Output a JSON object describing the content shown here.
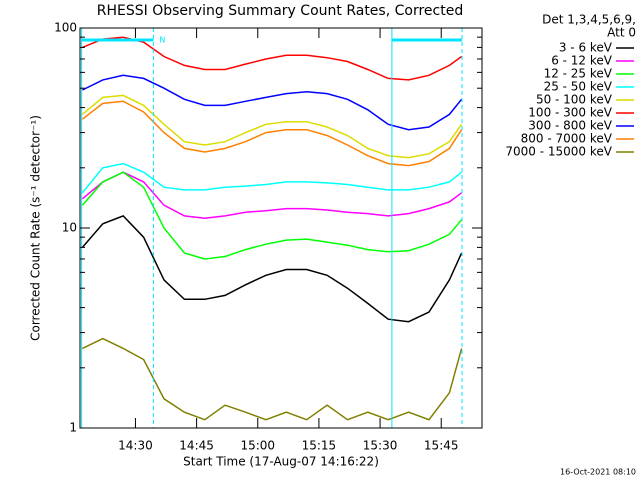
{
  "chart_data": {
    "type": "line",
    "title": "RHESSI Observing Summary Count Rates, Corrected",
    "xlabel": "Start Time (17-Aug-07 14:16:22)",
    "ylabel": "Corrected Count Rate (s⁻¹ detector⁻¹)",
    "legend_header": [
      "Det 1,3,4,5,6,9,",
      "Att 0"
    ],
    "legend_position": "outside-right",
    "footer": "16-Oct-2021 08:10",
    "log_y": true,
    "xlim": [
      16.4,
      115
    ],
    "ylim": [
      1,
      100
    ],
    "xticks": [
      {
        "value": 30,
        "label": "14:30"
      },
      {
        "value": 45,
        "label": "14:45"
      },
      {
        "value": 60,
        "label": "15:00"
      },
      {
        "value": 75,
        "label": "15:15"
      },
      {
        "value": 90,
        "label": "15:30"
      },
      {
        "value": 105,
        "label": "15:45"
      }
    ],
    "yticks": [
      1,
      10,
      100
    ],
    "y_minor_ticks": [
      2,
      3,
      4,
      5,
      6,
      7,
      8,
      9,
      20,
      30,
      40,
      50,
      60,
      70,
      80,
      90
    ],
    "night_periods": [
      [
        16.8,
        34.4
      ],
      [
        92.9,
        110.1
      ]
    ],
    "night_label": "N",
    "night_color": "#00e5ff",
    "x": [
      17,
      22,
      27,
      32,
      37,
      42,
      47,
      52,
      57,
      62,
      67,
      72,
      77,
      82,
      87,
      92,
      97,
      102,
      107,
      110
    ],
    "series": [
      {
        "name": "3 - 6 keV",
        "color": "#000000",
        "values": [
          8,
          10.5,
          11.5,
          9,
          5.5,
          4.4,
          4.4,
          4.6,
          5.2,
          5.8,
          6.2,
          6.2,
          5.8,
          5,
          4.2,
          3.5,
          3.4,
          3.8,
          5.5,
          7.5
        ]
      },
      {
        "name": "6 - 12 keV",
        "color": "#ff00ff",
        "values": [
          14,
          17,
          19,
          17,
          13,
          11.5,
          11.2,
          11.5,
          12,
          12.2,
          12.5,
          12.5,
          12.3,
          12,
          11.8,
          11.5,
          11.8,
          12.5,
          13.5,
          15
        ]
      },
      {
        "name": "12 - 25 keV",
        "color": "#00ff00",
        "values": [
          13,
          17,
          19,
          16,
          10,
          7.5,
          7,
          7.2,
          7.8,
          8.3,
          8.7,
          8.8,
          8.5,
          8.2,
          7.8,
          7.6,
          7.7,
          8.3,
          9.3,
          11
        ]
      },
      {
        "name": "25 - 50 keV",
        "color": "#00ffff",
        "values": [
          15,
          20,
          21,
          19,
          16,
          15.5,
          15.5,
          16,
          16.2,
          16.5,
          17,
          17,
          16.8,
          16.5,
          16,
          15.5,
          15.5,
          16,
          17,
          19
        ]
      },
      {
        "name": "50 - 100 keV",
        "color": "#dcdc00",
        "values": [
          37,
          45,
          46,
          41,
          33,
          27,
          26,
          27,
          30,
          33,
          34,
          34,
          32,
          29,
          25,
          23,
          22.5,
          23.5,
          27,
          33
        ]
      },
      {
        "name": "100 - 300 keV",
        "color": "#ff0000",
        "values": [
          80,
          88,
          90,
          85,
          72,
          65,
          62,
          62,
          66,
          70,
          73,
          73,
          71,
          68,
          62,
          56,
          55,
          58,
          65,
          72
        ]
      },
      {
        "name": "300 - 800 keV",
        "color": "#0000ff",
        "values": [
          49,
          55,
          58,
          56,
          50,
          44,
          41,
          41,
          43,
          45,
          47,
          48,
          47,
          44,
          39,
          33,
          31,
          32,
          37,
          44
        ]
      },
      {
        "name": "800 - 7000 keV",
        "color": "#ff8000",
        "values": [
          35,
          42,
          43,
          38,
          30,
          25,
          24,
          25,
          27,
          30,
          31,
          31,
          29,
          26,
          23,
          21,
          20.5,
          21.5,
          25,
          31
        ]
      },
      {
        "name": "7000 - 15000 keV",
        "color": "#808000",
        "values": [
          2.5,
          2.8,
          2.5,
          2.2,
          1.4,
          1.2,
          1.1,
          1.3,
          1.2,
          1.1,
          1.2,
          1.1,
          1.3,
          1.1,
          1.2,
          1.1,
          1.2,
          1.1,
          1.5,
          2.5
        ]
      }
    ]
  }
}
